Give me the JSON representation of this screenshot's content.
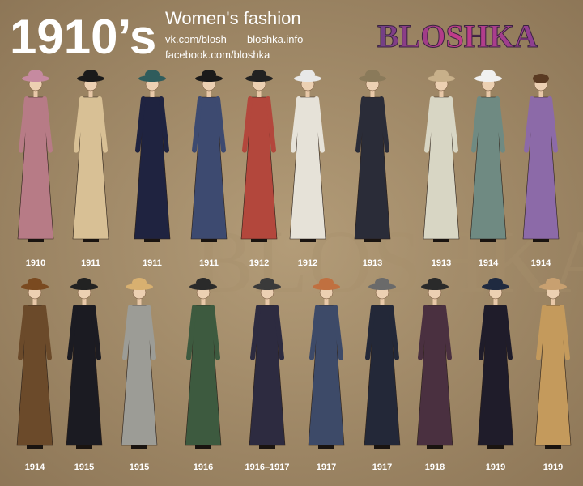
{
  "header": {
    "title": "1910’s",
    "subtitle": "Women's fashion",
    "links": [
      "vk.com/blosh",
      "bloshka.info",
      "facebook.com/bloshka"
    ],
    "brand": "BLOSHKA"
  },
  "rows": [
    {
      "labels": [
        "1910",
        "1911",
        "1911",
        "1911",
        "1912",
        "1912",
        "1913",
        "1913",
        "1914",
        "1914"
      ]
    },
    {
      "labels": [
        "1914",
        "1915",
        "1915",
        "1916",
        "1916–1917",
        "1917",
        "1917",
        "1918",
        "1919",
        "1919"
      ]
    }
  ]
}
